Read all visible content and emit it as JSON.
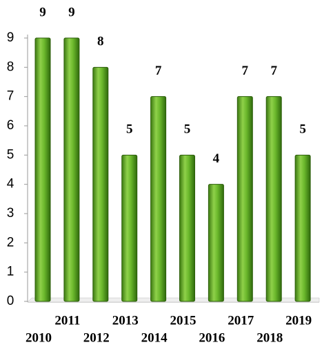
{
  "chart_data": {
    "type": "bar",
    "categories": [
      "2010",
      "2011",
      "2012",
      "2013",
      "2014",
      "2015",
      "2016",
      "2017",
      "2018",
      "2019"
    ],
    "values": [
      9,
      9,
      8,
      5,
      7,
      5,
      4,
      7,
      7,
      5
    ],
    "color": "#5aa322",
    "ylim": [
      0,
      9
    ],
    "yticks": [
      0,
      1,
      2,
      3,
      4,
      5,
      6,
      7,
      8,
      9
    ],
    "grid": false
  }
}
